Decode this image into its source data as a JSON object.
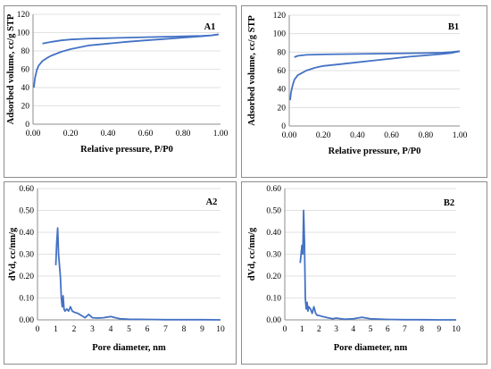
{
  "chart_data": [
    {
      "id": "A1",
      "type": "line",
      "panel_label": "A1",
      "xlabel": "Relative pressure, P/P0",
      "ylabel": "Adsorbed volume, cc/g STP",
      "xlim": [
        0,
        1
      ],
      "ylim": [
        0,
        120
      ],
      "xticks": [
        "0.00",
        "0.20",
        "0.40",
        "0.60",
        "0.80",
        "1.00"
      ],
      "yticks": [
        "0",
        "20",
        "40",
        "60",
        "80",
        "100",
        "120"
      ],
      "color": "#4472C4",
      "series": [
        {
          "x": [
            0.005,
            0.01,
            0.02,
            0.03,
            0.05,
            0.08,
            0.1,
            0.15,
            0.2,
            0.25,
            0.3,
            0.4,
            0.5,
            0.6,
            0.7,
            0.8,
            0.9,
            0.95,
            0.99
          ],
          "y": [
            40,
            50,
            59,
            64,
            69,
            73,
            75,
            79,
            82,
            84,
            86,
            88,
            90,
            91.5,
            93,
            94.5,
            96,
            97,
            98
          ]
        },
        {
          "x": [
            0.99,
            0.95,
            0.9,
            0.8,
            0.7,
            0.6,
            0.5,
            0.4,
            0.3,
            0.2,
            0.15,
            0.1,
            0.05
          ],
          "y": [
            98,
            97,
            96.5,
            96,
            95.5,
            95,
            94.5,
            94,
            93.5,
            92.5,
            91.5,
            90,
            88
          ]
        }
      ]
    },
    {
      "id": "B1",
      "type": "line",
      "panel_label": "B1",
      "xlabel": "Relative pressure, P/P0",
      "ylabel": "Adsorbed volume, cc/g STP",
      "xlim": [
        0,
        1
      ],
      "ylim": [
        0,
        120
      ],
      "xticks": [
        "0.00",
        "0.20",
        "0.40",
        "0.60",
        "0.80",
        "1.00"
      ],
      "yticks": [
        "0",
        "20",
        "40",
        "60",
        "80",
        "100",
        "120"
      ],
      "color": "#4472C4",
      "series": [
        {
          "x": [
            0.005,
            0.01,
            0.02,
            0.03,
            0.05,
            0.08,
            0.1,
            0.15,
            0.2,
            0.3,
            0.4,
            0.5,
            0.6,
            0.7,
            0.8,
            0.9,
            0.95,
            1.0
          ],
          "y": [
            28,
            36,
            44,
            50,
            55,
            58,
            60,
            63,
            65,
            67,
            69,
            71,
            73,
            75,
            76.5,
            78,
            79,
            81
          ]
        },
        {
          "x": [
            1.0,
            0.95,
            0.9,
            0.8,
            0.7,
            0.6,
            0.5,
            0.4,
            0.3,
            0.2,
            0.1,
            0.05,
            0.03
          ],
          "y": [
            81,
            80,
            79.5,
            79,
            78.8,
            78.5,
            78.3,
            78,
            77.8,
            77.5,
            77,
            76,
            74.5
          ]
        }
      ]
    },
    {
      "id": "A2",
      "type": "line",
      "panel_label": "A2",
      "xlabel": "Pore diameter, nm",
      "ylabel": "dVd, cc/nm/g",
      "xlim": [
        0,
        10
      ],
      "ylim": [
        0,
        0.6
      ],
      "xticks": [
        "0",
        "1",
        "2",
        "3",
        "4",
        "5",
        "6",
        "7",
        "8",
        "9",
        "10"
      ],
      "yticks": [
        "0.00",
        "0.10",
        "0.20",
        "0.30",
        "0.40",
        "0.50",
        "0.60"
      ],
      "color": "#4472C4",
      "series": [
        {
          "x": [
            1.0,
            1.05,
            1.1,
            1.15,
            1.2,
            1.25,
            1.3,
            1.35,
            1.4,
            1.45,
            1.5,
            1.6,
            1.7,
            1.8,
            1.9,
            2.0,
            2.2,
            2.4,
            2.6,
            2.8,
            3.0,
            3.3,
            3.6,
            4.0,
            4.5,
            5.0,
            6.0,
            7.0,
            8.0,
            9.0,
            10.0
          ],
          "y": [
            0.25,
            0.35,
            0.42,
            0.3,
            0.25,
            0.2,
            0.1,
            0.06,
            0.11,
            0.05,
            0.04,
            0.05,
            0.04,
            0.06,
            0.04,
            0.035,
            0.03,
            0.02,
            0.01,
            0.025,
            0.01,
            0.008,
            0.01,
            0.015,
            0.005,
            0.003,
            0.002,
            0.001,
            0.001,
            0.001,
            0.0
          ]
        }
      ]
    },
    {
      "id": "B2",
      "type": "line",
      "panel_label": "B2",
      "xlabel": "Pore diameter, nm",
      "ylabel": "dVd, cc/nm/g",
      "xlim": [
        0,
        10
      ],
      "ylim": [
        0,
        0.6
      ],
      "xticks": [
        "0",
        "1",
        "2",
        "3",
        "4",
        "5",
        "6",
        "7",
        "8",
        "9",
        "10"
      ],
      "yticks": [
        "0.00",
        "0.10",
        "0.20",
        "0.30",
        "0.40",
        "0.50",
        "0.60"
      ],
      "color": "#4472C4",
      "series": [
        {
          "x": [
            0.9,
            1.0,
            1.05,
            1.1,
            1.15,
            1.2,
            1.25,
            1.3,
            1.35,
            1.4,
            1.5,
            1.6,
            1.7,
            1.8,
            1.9,
            2.0,
            2.2,
            2.5,
            2.8,
            3.0,
            3.5,
            4.0,
            4.5,
            5.0,
            6.0,
            7.0,
            8.0,
            9.0,
            10.0
          ],
          "y": [
            0.26,
            0.34,
            0.3,
            0.5,
            0.35,
            0.1,
            0.05,
            0.08,
            0.04,
            0.06,
            0.05,
            0.03,
            0.06,
            0.03,
            0.02,
            0.02,
            0.015,
            0.01,
            0.005,
            0.008,
            0.003,
            0.005,
            0.012,
            0.005,
            0.002,
            0.001,
            0.001,
            0.0,
            0.0
          ]
        }
      ]
    }
  ]
}
